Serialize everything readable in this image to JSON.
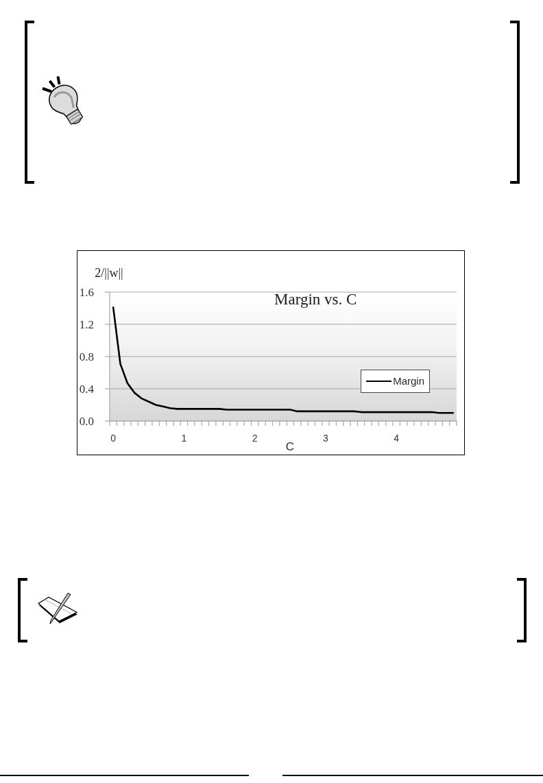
{
  "chart_data": {
    "type": "line",
    "title": "Margin vs. C",
    "xlabel": "C",
    "ylabel": "2/||w||",
    "categories": [
      "0",
      null,
      null,
      null,
      null,
      null,
      null,
      null,
      null,
      null,
      "1",
      null,
      null,
      null,
      null,
      null,
      null,
      null,
      null,
      null,
      "2",
      null,
      null,
      null,
      null,
      null,
      null,
      null,
      null,
      null,
      "3",
      null,
      null,
      null,
      null,
      null,
      null,
      null,
      null,
      null,
      "4",
      null,
      null,
      null,
      null,
      null,
      null,
      null,
      null
    ],
    "series": [
      {
        "name": "Margin",
        "color": "#000000",
        "values": [
          1.41,
          0.71,
          0.47,
          0.35,
          0.28,
          0.24,
          0.2,
          0.18,
          0.16,
          0.15,
          0.15,
          0.15,
          0.15,
          0.15,
          0.15,
          0.15,
          0.14,
          0.14,
          0.14,
          0.14,
          0.14,
          0.14,
          0.14,
          0.14,
          0.14,
          0.14,
          0.12,
          0.12,
          0.12,
          0.12,
          0.12,
          0.12,
          0.12,
          0.12,
          0.12,
          0.11,
          0.11,
          0.11,
          0.11,
          0.11,
          0.11,
          0.11,
          0.11,
          0.11,
          0.11,
          0.11,
          0.1,
          0.1,
          0.1
        ]
      }
    ],
    "ylim": [
      0,
      1.6
    ],
    "yticks": [
      {
        "value": 0,
        "label": "0.0"
      },
      {
        "value": 0.4,
        "label": "0.4"
      },
      {
        "value": 0.8,
        "label": "0.8"
      },
      {
        "value": 1.2,
        "label": "1.2"
      },
      {
        "value": 1.6,
        "label": "1.6"
      }
    ],
    "grid": "y",
    "legend": "right"
  }
}
